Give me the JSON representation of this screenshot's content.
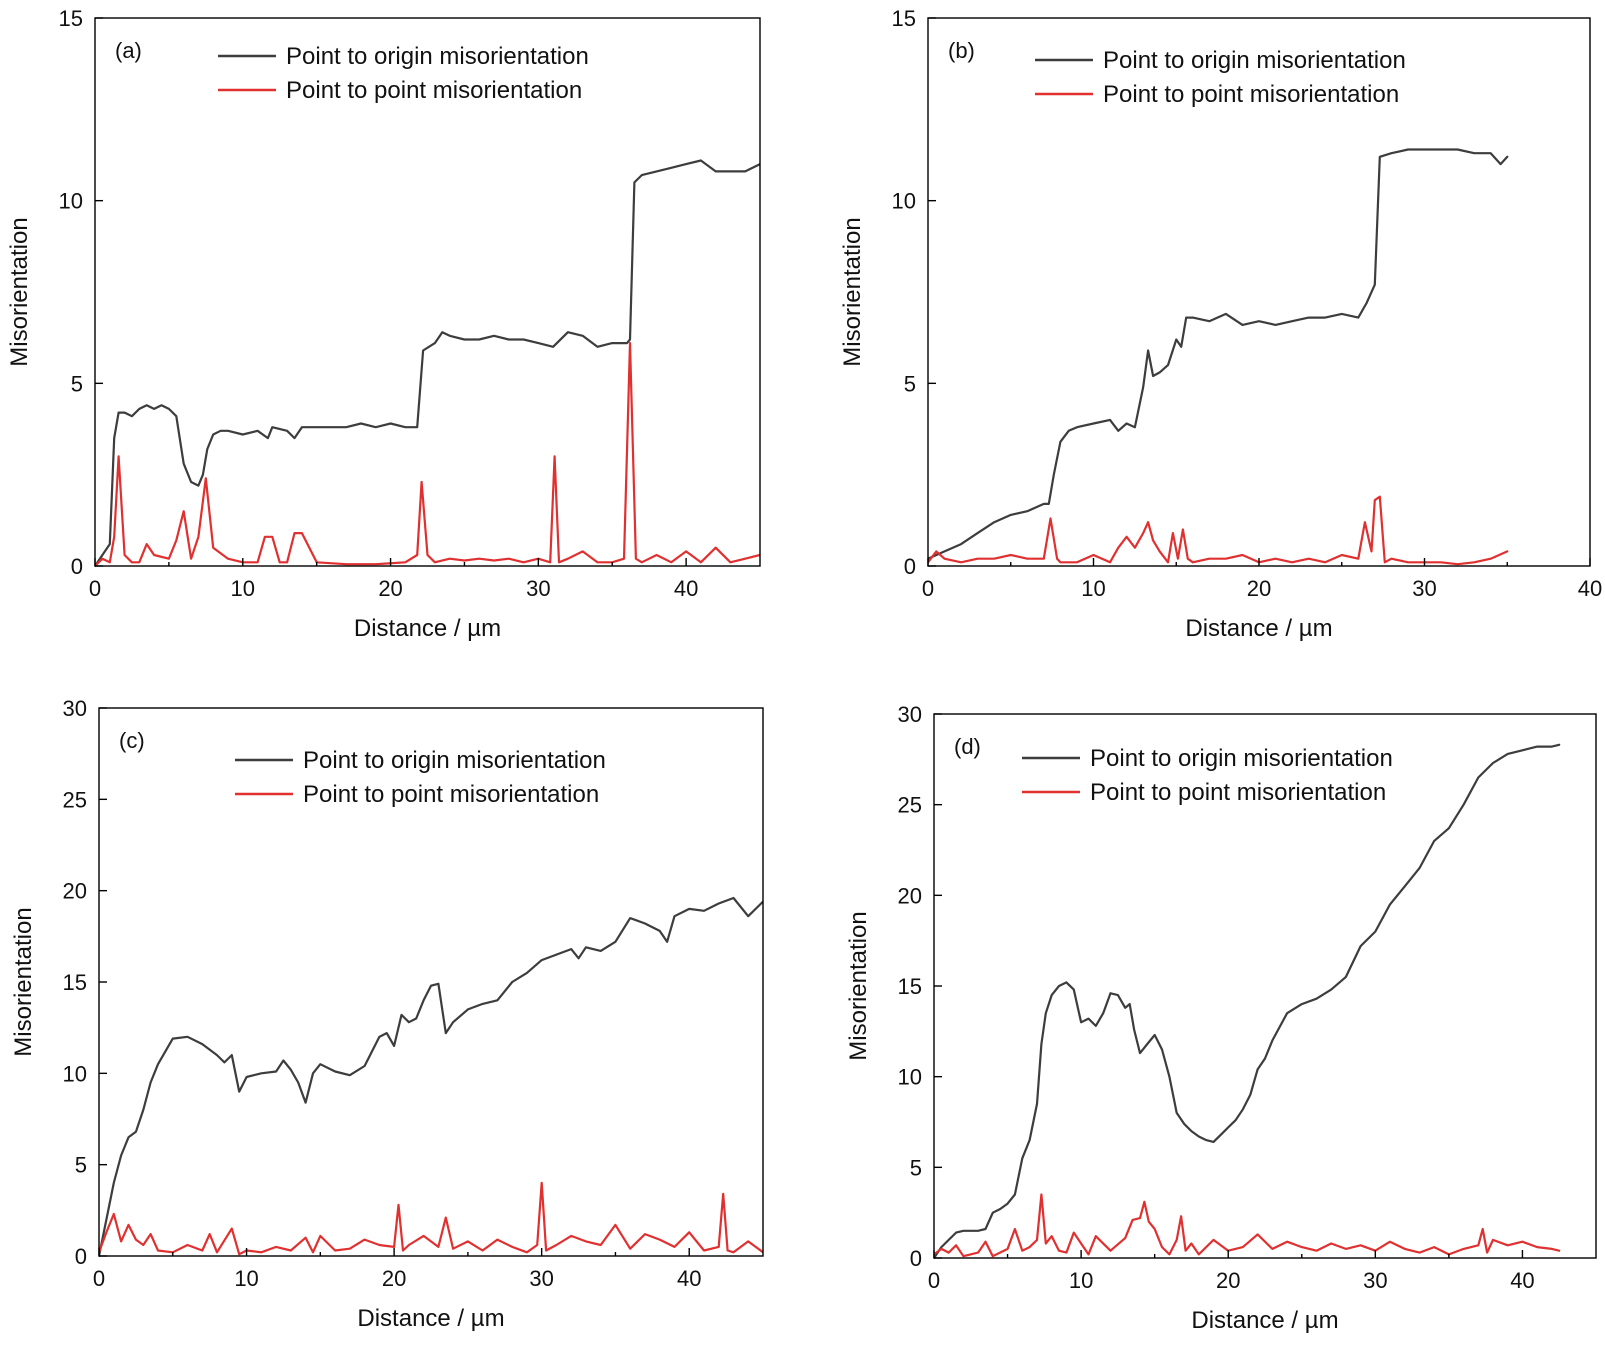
{
  "chart_data": [
    {
      "type": "line",
      "panel_label": "(a)",
      "xlabel": "Distance / µm",
      "ylabel": "Misorientation",
      "xlim": [
        0,
        45
      ],
      "ylim": [
        0,
        15
      ],
      "xticks": [
        0,
        10,
        20,
        30,
        40
      ],
      "yticks": [
        0,
        5,
        10,
        15
      ],
      "grid": false,
      "legend": "top-center",
      "series": [
        {
          "name": "Point to origin misorientation",
          "color": "#3d3d3d",
          "x": [
            0,
            0.5,
            1,
            1.3,
            1.6,
            2,
            2.5,
            3,
            3.5,
            4,
            4.5,
            5,
            5.5,
            6,
            6.5,
            7,
            7.3,
            7.6,
            8,
            8.5,
            9,
            10,
            11,
            11.7,
            12,
            13,
            13.5,
            14,
            15,
            16,
            17,
            18,
            19,
            20,
            21,
            21.8,
            22.2,
            23,
            23.5,
            24,
            25,
            26,
            27,
            28,
            29,
            30,
            31,
            32,
            33,
            34,
            35,
            36,
            36.2,
            36.5,
            37,
            38,
            39,
            40,
            41,
            42,
            43,
            44,
            44.5,
            45
          ],
          "y": [
            0,
            0.3,
            0.6,
            3.5,
            4.2,
            4.2,
            4.1,
            4.3,
            4.4,
            4.3,
            4.4,
            4.3,
            4.1,
            2.8,
            2.3,
            2.2,
            2.5,
            3.2,
            3.6,
            3.7,
            3.7,
            3.6,
            3.7,
            3.5,
            3.8,
            3.7,
            3.5,
            3.8,
            3.8,
            3.8,
            3.8,
            3.9,
            3.8,
            3.9,
            3.8,
            3.8,
            5.9,
            6.1,
            6.4,
            6.3,
            6.2,
            6.2,
            6.3,
            6.2,
            6.2,
            6.1,
            6.0,
            6.4,
            6.3,
            6.0,
            6.1,
            6.1,
            6.2,
            10.5,
            10.7,
            10.8,
            10.9,
            11.0,
            11.1,
            10.8,
            10.8,
            10.8,
            10.9,
            11.0
          ]
        },
        {
          "name": "Point to point misorientation",
          "color": "#e03030",
          "x": [
            0,
            0.5,
            1,
            1.3,
            1.6,
            2,
            2.5,
            3,
            3.5,
            4,
            5,
            5.5,
            6,
            6.5,
            7,
            7.5,
            8,
            9,
            10,
            11,
            11.5,
            12,
            12.5,
            13,
            13.5,
            14,
            15,
            17,
            19,
            21,
            21.8,
            22.1,
            22.5,
            23,
            24,
            25,
            26,
            27,
            28,
            29,
            30,
            30.8,
            31.1,
            31.4,
            32,
            33,
            34,
            35,
            35.8,
            36.2,
            36.6,
            37,
            38,
            39,
            40,
            41,
            42,
            43,
            44,
            45
          ],
          "y": [
            0,
            0.2,
            0.1,
            0.8,
            3.0,
            0.3,
            0.1,
            0.1,
            0.6,
            0.3,
            0.2,
            0.7,
            1.5,
            0.2,
            0.8,
            2.4,
            0.5,
            0.2,
            0.1,
            0.1,
            0.8,
            0.8,
            0.1,
            0.1,
            0.9,
            0.9,
            0.1,
            0.05,
            0.05,
            0.1,
            0.3,
            2.3,
            0.3,
            0.1,
            0.2,
            0.15,
            0.2,
            0.15,
            0.2,
            0.1,
            0.2,
            0.1,
            3.0,
            0.1,
            0.2,
            0.4,
            0.1,
            0.1,
            0.2,
            6.1,
            0.2,
            0.1,
            0.3,
            0.1,
            0.4,
            0.1,
            0.5,
            0.1,
            0.2,
            0.3
          ]
        }
      ]
    },
    {
      "type": "line",
      "panel_label": "(b)",
      "xlabel": "Distance / µm",
      "ylabel": "Misorientation",
      "xlim": [
        0,
        40
      ],
      "ylim": [
        0,
        15
      ],
      "xticks": [
        0,
        10,
        20,
        30,
        40
      ],
      "yticks": [
        0,
        5,
        10,
        15
      ],
      "grid": false,
      "legend": "top-center",
      "series": [
        {
          "name": "Point to origin misorientation",
          "color": "#3d3d3d",
          "x": [
            0,
            1,
            2,
            3,
            4,
            5,
            6,
            7,
            7.3,
            7.6,
            8,
            8.5,
            9,
            10,
            11,
            11.5,
            12,
            12.5,
            13,
            13.3,
            13.6,
            14,
            14.5,
            15,
            15.3,
            15.6,
            16,
            17,
            18,
            19,
            20,
            21,
            22,
            23,
            24,
            25,
            26,
            26.5,
            27,
            27.3,
            28,
            29,
            30,
            31,
            32,
            33,
            34,
            34.6,
            35
          ],
          "y": [
            0.2,
            0.4,
            0.6,
            0.9,
            1.2,
            1.4,
            1.5,
            1.7,
            1.7,
            2.5,
            3.4,
            3.7,
            3.8,
            3.9,
            4.0,
            3.7,
            3.9,
            3.8,
            4.9,
            5.9,
            5.2,
            5.3,
            5.5,
            6.2,
            6.0,
            6.8,
            6.8,
            6.7,
            6.9,
            6.6,
            6.7,
            6.6,
            6.7,
            6.8,
            6.8,
            6.9,
            6.8,
            7.2,
            7.7,
            11.2,
            11.3,
            11.4,
            11.4,
            11.4,
            11.4,
            11.3,
            11.3,
            11.0,
            11.2
          ]
        },
        {
          "name": "Point to point misorientation",
          "color": "#e03030",
          "x": [
            0,
            0.5,
            1,
            2,
            3,
            4,
            5,
            6,
            7,
            7.4,
            7.8,
            8,
            9,
            10,
            11,
            11.5,
            12,
            12.5,
            13,
            13.3,
            13.6,
            14,
            14.5,
            14.8,
            15.1,
            15.4,
            15.7,
            16,
            17,
            18,
            19,
            20,
            21,
            22,
            23,
            24,
            25,
            26,
            26.4,
            26.8,
            27,
            27.3,
            27.6,
            28,
            29,
            30,
            31,
            32,
            33,
            34,
            35
          ],
          "y": [
            0.1,
            0.4,
            0.2,
            0.1,
            0.2,
            0.2,
            0.3,
            0.2,
            0.2,
            1.3,
            0.2,
            0.1,
            0.1,
            0.3,
            0.1,
            0.5,
            0.8,
            0.5,
            0.9,
            1.2,
            0.7,
            0.4,
            0.1,
            0.9,
            0.2,
            1.0,
            0.2,
            0.1,
            0.2,
            0.2,
            0.3,
            0.1,
            0.2,
            0.1,
            0.2,
            0.1,
            0.3,
            0.2,
            1.2,
            0.4,
            1.8,
            1.9,
            0.1,
            0.2,
            0.1,
            0.1,
            0.1,
            0.05,
            0.1,
            0.2,
            0.4
          ]
        }
      ]
    },
    {
      "type": "line",
      "panel_label": "(c)",
      "xlabel": "Distance / µm",
      "ylabel": "Misorientation",
      "xlim": [
        0,
        45
      ],
      "ylim": [
        0,
        30
      ],
      "xticks": [
        0,
        10,
        20,
        30,
        40
      ],
      "yticks": [
        0,
        5,
        10,
        15,
        20,
        25,
        30
      ],
      "grid": false,
      "legend": "top-center",
      "series": [
        {
          "name": "Point to origin misorientation",
          "color": "#3d3d3d",
          "x": [
            0,
            0.5,
            1,
            1.5,
            2,
            2.5,
            3,
            3.5,
            4,
            5,
            6,
            7,
            8,
            8.5,
            9,
            9.5,
            10,
            11,
            12,
            12.5,
            13,
            13.5,
            14,
            14.5,
            15,
            16,
            17,
            18,
            19,
            19.5,
            20,
            20.5,
            21,
            21.5,
            22,
            22.5,
            23,
            23.5,
            24,
            25,
            26,
            27,
            28,
            29,
            30,
            31,
            32,
            32.5,
            33,
            34,
            35,
            36,
            37,
            38,
            38.5,
            39,
            40,
            41,
            42,
            43,
            44,
            45
          ],
          "y": [
            0,
            2,
            4,
            5.5,
            6.5,
            6.8,
            8,
            9.5,
            10.5,
            11.9,
            12,
            11.6,
            11.0,
            10.6,
            11.0,
            9.0,
            9.8,
            10.0,
            10.1,
            10.7,
            10.2,
            9.5,
            8.4,
            10.0,
            10.5,
            10.1,
            9.9,
            10.4,
            12.0,
            12.2,
            11.5,
            13.2,
            12.8,
            13.0,
            14.0,
            14.8,
            14.9,
            12.2,
            12.8,
            13.5,
            13.8,
            14.0,
            15.0,
            15.5,
            16.2,
            16.5,
            16.8,
            16.3,
            16.9,
            16.7,
            17.2,
            18.5,
            18.2,
            17.8,
            17.2,
            18.6,
            19.0,
            18.9,
            19.3,
            19.6,
            18.6,
            19.4
          ]
        },
        {
          "name": "Point to point misorientation",
          "color": "#e03030",
          "x": [
            0,
            0.5,
            1,
            1.5,
            2,
            2.5,
            3,
            3.5,
            4,
            5,
            6,
            7,
            7.5,
            8,
            9,
            9.5,
            10,
            11,
            12,
            13,
            14,
            14.5,
            15,
            16,
            17,
            18,
            19,
            20,
            20.3,
            20.6,
            21,
            22,
            23,
            23.5,
            24,
            25,
            26,
            27,
            28,
            29,
            29.7,
            30,
            30.3,
            31,
            32,
            33,
            34,
            35,
            36,
            37,
            38,
            39,
            40,
            41,
            42,
            42.3,
            42.6,
            43,
            44,
            45
          ],
          "y": [
            0.2,
            1.3,
            2.3,
            0.8,
            1.7,
            0.9,
            0.6,
            1.2,
            0.3,
            0.2,
            0.6,
            0.3,
            1.2,
            0.2,
            1.5,
            0.1,
            0.3,
            0.2,
            0.5,
            0.3,
            1.0,
            0.2,
            1.1,
            0.3,
            0.4,
            0.9,
            0.6,
            0.5,
            2.8,
            0.3,
            0.6,
            1.1,
            0.5,
            2.1,
            0.4,
            0.8,
            0.3,
            0.9,
            0.5,
            0.2,
            0.6,
            4.0,
            0.3,
            0.6,
            1.1,
            0.8,
            0.6,
            1.7,
            0.4,
            1.2,
            0.9,
            0.5,
            1.3,
            0.3,
            0.5,
            3.4,
            0.3,
            0.2,
            0.8,
            0.2
          ]
        }
      ]
    },
    {
      "type": "line",
      "panel_label": "(d)",
      "xlabel": "Distance / µm",
      "ylabel": "Misorientation",
      "xlim": [
        0,
        45
      ],
      "ylim": [
        0,
        30
      ],
      "xticks": [
        0,
        10,
        20,
        30,
        40
      ],
      "yticks": [
        0,
        5,
        10,
        15,
        20,
        25,
        30
      ],
      "grid": false,
      "legend": "top-center",
      "series": [
        {
          "name": "Point to origin misorientation",
          "color": "#3d3d3d",
          "x": [
            0,
            0.5,
            1,
            1.5,
            2,
            2.5,
            3,
            3.5,
            4,
            4.5,
            5,
            5.5,
            6,
            6.5,
            7,
            7.3,
            7.6,
            8,
            8.5,
            9,
            9.5,
            10,
            10.5,
            11,
            11.5,
            12,
            12.5,
            13,
            13.3,
            13.6,
            14,
            14.5,
            15,
            15.5,
            16,
            16.5,
            17,
            17.5,
            18,
            18.5,
            19,
            19.5,
            20,
            20.5,
            21,
            21.5,
            22,
            22.5,
            23,
            24,
            25,
            26,
            27,
            28,
            29,
            30,
            31,
            32,
            33,
            34,
            35,
            36,
            37,
            38,
            39,
            40,
            41,
            42,
            42.5
          ],
          "y": [
            0,
            0.6,
            1.0,
            1.4,
            1.5,
            1.5,
            1.5,
            1.6,
            2.5,
            2.7,
            3.0,
            3.5,
            5.5,
            6.5,
            8.5,
            11.8,
            13.5,
            14.5,
            15.0,
            15.2,
            14.8,
            13.0,
            13.2,
            12.8,
            13.5,
            14.6,
            14.5,
            13.8,
            14.0,
            12.6,
            11.3,
            11.8,
            12.3,
            11.5,
            10.0,
            8.0,
            7.4,
            7.0,
            6.7,
            6.5,
            6.4,
            6.8,
            7.2,
            7.6,
            8.2,
            9.0,
            10.4,
            11.0,
            12.0,
            13.5,
            14.0,
            14.3,
            14.8,
            15.5,
            17.2,
            18.0,
            19.5,
            20.5,
            21.5,
            23.0,
            23.7,
            25.0,
            26.5,
            27.3,
            27.8,
            28.0,
            28.2,
            28.2,
            28.3
          ]
        },
        {
          "name": "Point to point misorientation",
          "color": "#e03030",
          "x": [
            0,
            0.5,
            1,
            1.5,
            2,
            3,
            3.5,
            4,
            5,
            5.5,
            6,
            6.5,
            7,
            7.3,
            7.6,
            8,
            8.5,
            9,
            9.5,
            10,
            10.5,
            11,
            12,
            13,
            13.5,
            14,
            14.3,
            14.6,
            15,
            15.5,
            16,
            16.5,
            16.8,
            17.1,
            17.5,
            18,
            19,
            20,
            21,
            22,
            23,
            24,
            25,
            26,
            27,
            28,
            29,
            30,
            31,
            32,
            33,
            34,
            35,
            36,
            37,
            37.3,
            37.6,
            38,
            39,
            40,
            41,
            42,
            42.5
          ],
          "y": [
            0.2,
            0.5,
            0.3,
            0.7,
            0.1,
            0.3,
            0.9,
            0.1,
            0.5,
            1.6,
            0.4,
            0.6,
            1.0,
            3.5,
            0.8,
            1.2,
            0.4,
            0.3,
            1.4,
            0.8,
            0.2,
            1.2,
            0.4,
            1.1,
            2.1,
            2.2,
            3.1,
            2.0,
            1.6,
            0.6,
            0.2,
            1.0,
            2.3,
            0.4,
            0.8,
            0.2,
            1.0,
            0.4,
            0.6,
            1.3,
            0.5,
            0.9,
            0.6,
            0.4,
            0.8,
            0.5,
            0.7,
            0.4,
            0.9,
            0.5,
            0.3,
            0.6,
            0.2,
            0.5,
            0.7,
            1.6,
            0.3,
            1.0,
            0.7,
            0.9,
            0.6,
            0.5,
            0.4
          ]
        }
      ]
    }
  ]
}
